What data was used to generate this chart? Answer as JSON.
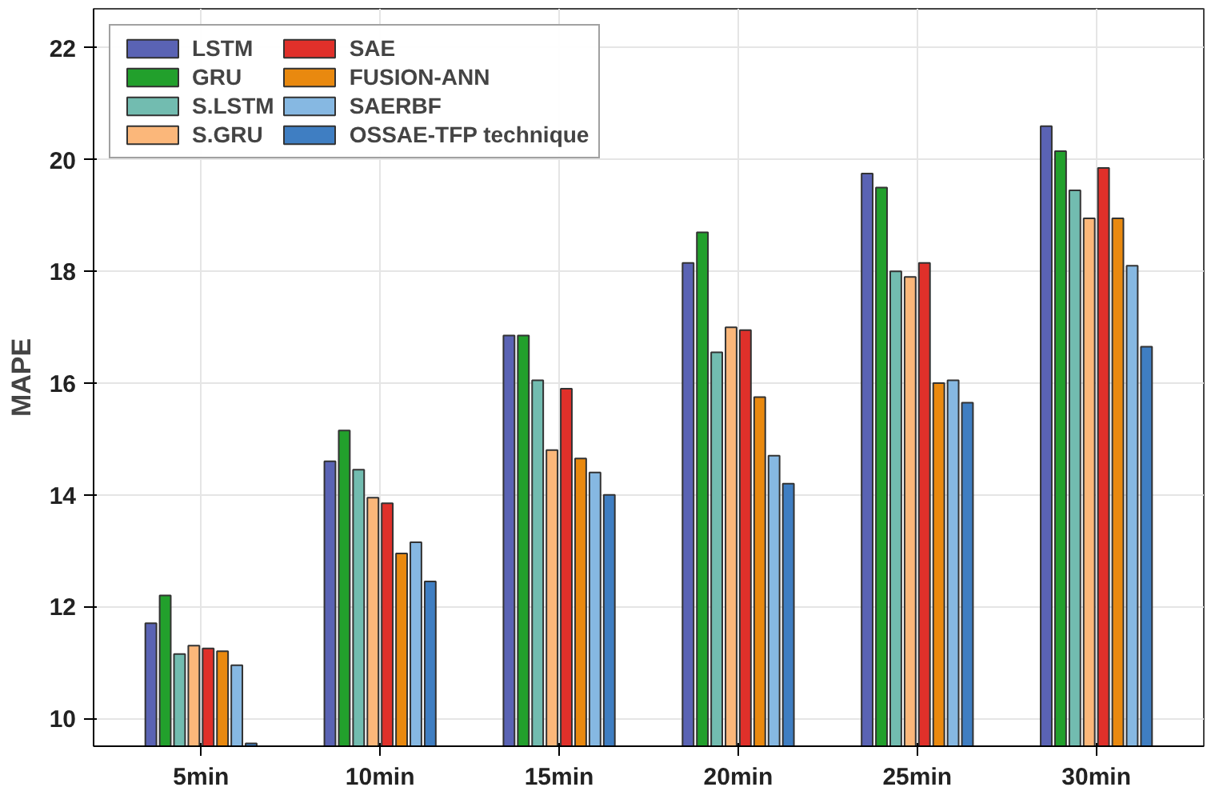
{
  "chart_data": {
    "type": "bar",
    "ylabel": "MAPE",
    "categories": [
      "5min",
      "10min",
      "15min",
      "20min",
      "25min",
      "30min"
    ],
    "series": [
      {
        "name": "LSTM",
        "color": "#5a63b4",
        "values": [
          11.7,
          14.6,
          16.85,
          18.15,
          19.75,
          20.6
        ]
      },
      {
        "name": "GRU",
        "color": "#22a02c",
        "values": [
          12.2,
          15.15,
          16.85,
          18.7,
          19.5,
          20.15
        ]
      },
      {
        "name": "S.LSTM",
        "color": "#72bcb0",
        "values": [
          11.15,
          14.45,
          16.05,
          16.55,
          18.0,
          19.45
        ]
      },
      {
        "name": "S.GRU",
        "color": "#fbb77a",
        "values": [
          11.3,
          13.95,
          14.8,
          17.0,
          17.9,
          18.95
        ]
      },
      {
        "name": "SAE",
        "color": "#e0302a",
        "values": [
          11.25,
          13.85,
          15.9,
          16.95,
          18.15,
          19.85
        ]
      },
      {
        "name": "FUSION-ANN",
        "color": "#e9890f",
        "values": [
          11.2,
          12.95,
          14.65,
          15.75,
          16.0,
          18.95
        ]
      },
      {
        "name": "SAERBF",
        "color": "#86b8e2",
        "values": [
          10.95,
          13.15,
          14.4,
          14.7,
          16.05,
          18.1
        ]
      },
      {
        "name": "OSSAE-TFP technique",
        "color": "#3f7ec2",
        "values": [
          9.55,
          12.45,
          14.0,
          14.2,
          15.65,
          16.65
        ]
      }
    ],
    "ylim": [
      9.5,
      22.7
    ],
    "yticks": [
      10,
      12,
      14,
      16,
      18,
      20,
      22
    ],
    "grid": true,
    "legend": "top left"
  }
}
